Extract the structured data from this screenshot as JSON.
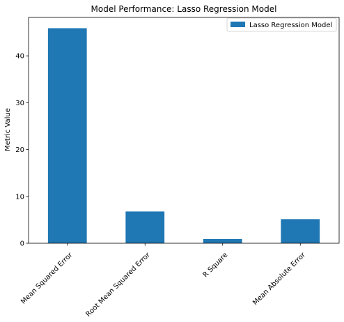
{
  "chart_data": {
    "type": "bar",
    "title": "Model Performance: Lasso Regression Model",
    "xlabel": "",
    "ylabel": "Metric Value",
    "categories": [
      "Mean Squared Error",
      "Root Mean Squared Error",
      "R Square",
      "Mean Absolute Error"
    ],
    "series": [
      {
        "name": "Lasso Regression Model",
        "values": [
          45.9,
          6.78,
          0.9,
          5.15
        ],
        "color": "#1f77b4"
      }
    ],
    "ylim": [
      0,
      48.2
    ],
    "yticks": [
      0,
      10,
      20,
      30,
      40
    ],
    "grid": false,
    "legend": "top-right",
    "x_tick_rotation": 45
  }
}
